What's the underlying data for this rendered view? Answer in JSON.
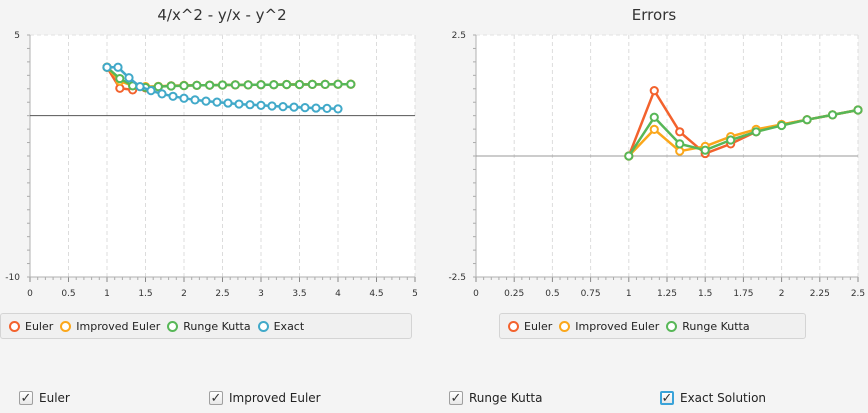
{
  "chart_data": [
    {
      "type": "line",
      "title": "4/x^2 - y/x - y^2",
      "xlim": [
        0,
        5
      ],
      "ylim": [
        -10,
        5
      ],
      "x_ticks": [
        "0",
        "0.5",
        "1",
        "1.5",
        "2",
        "2.5",
        "3",
        "3.5",
        "4",
        "4.5",
        "5"
      ],
      "y_ticks": [
        "5",
        "-10"
      ],
      "grid": true,
      "legend": "bottom",
      "series": [
        {
          "name": "Euler",
          "color": "#f3622d",
          "x": [
            1.0,
            1.1667,
            1.3333,
            1.5,
            1.6667,
            1.8333,
            2.0,
            2.1667,
            2.3333,
            2.5,
            2.6667,
            2.8333,
            3.0,
            3.1667,
            3.3333,
            3.5,
            3.6667,
            3.8333,
            4.0,
            4.1667
          ],
          "y": [
            3,
            1.7,
            1.6,
            1.72,
            1.8,
            1.85,
            1.87,
            1.88,
            1.89,
            1.9,
            1.91,
            1.91,
            1.92,
            1.92,
            1.93,
            1.93,
            1.94,
            1.94,
            1.95,
            1.95
          ]
        },
        {
          "name": "Improved Euler",
          "color": "#fba71b",
          "x": [
            1.0,
            1.1667,
            1.3333,
            1.5,
            1.6667,
            1.8333,
            2.0,
            2.1667,
            2.3333,
            2.5,
            2.6667,
            2.8333,
            3.0,
            3.1667,
            3.3333,
            3.5,
            3.6667,
            3.8333,
            4.0,
            4.1667
          ],
          "y": [
            3,
            2.15,
            1.85,
            1.8,
            1.82,
            1.85,
            1.87,
            1.88,
            1.89,
            1.9,
            1.91,
            1.91,
            1.92,
            1.92,
            1.93,
            1.93,
            1.94,
            1.94,
            1.95,
            1.95
          ]
        },
        {
          "name": "Runge Kutta",
          "color": "#57b757",
          "x": [
            1.0,
            1.1667,
            1.3333,
            1.5,
            1.6667,
            1.8333,
            2.0,
            2.1667,
            2.3333,
            2.5,
            2.6667,
            2.8333,
            3.0,
            3.1667,
            3.3333,
            3.5,
            3.6667,
            3.8333,
            4.0,
            4.1667
          ],
          "y": [
            3,
            2.3,
            1.85,
            1.75,
            1.8,
            1.84,
            1.86,
            1.88,
            1.89,
            1.9,
            1.91,
            1.91,
            1.92,
            1.92,
            1.93,
            1.93,
            1.94,
            1.94,
            1.95,
            1.95
          ]
        },
        {
          "name": "Exact",
          "color": "#41a9c9",
          "x": [
            1.0,
            1.1429,
            1.2857,
            1.4286,
            1.5714,
            1.7143,
            1.8571,
            2.0,
            2.1429,
            2.2857,
            2.4286,
            2.5714,
            2.7143,
            2.8571,
            3.0,
            3.1429,
            3.2857,
            3.4286,
            3.5714,
            3.7143,
            3.8571,
            4.0
          ],
          "y": [
            3,
            3,
            2.35,
            1.8,
            1.55,
            1.35,
            1.2,
            1.08,
            0.98,
            0.9,
            0.84,
            0.78,
            0.72,
            0.68,
            0.64,
            0.6,
            0.56,
            0.53,
            0.5,
            0.47,
            0.45,
            0.42
          ]
        }
      ]
    },
    {
      "type": "line",
      "title": "Errors",
      "xlim": [
        0,
        2.5
      ],
      "ylim": [
        -2.5,
        2.5
      ],
      "x_ticks": [
        "0",
        "0.25",
        "0.5",
        "0.75",
        "1",
        "1.25",
        "1.5",
        "1.75",
        "2",
        "2.25",
        "2.5"
      ],
      "y_ticks": [
        "2.5",
        "-2.5"
      ],
      "grid": true,
      "legend": "bottom",
      "series": [
        {
          "name": "Euler",
          "color": "#f3622d",
          "x": [
            1.0,
            1.1667,
            1.3333,
            1.5,
            1.6667,
            1.8333,
            2.0,
            2.1667,
            2.3333,
            2.5
          ],
          "y": [
            0,
            1.35,
            0.5,
            0.05,
            0.25,
            0.5,
            0.65,
            0.75,
            0.85,
            0.95
          ]
        },
        {
          "name": "Improved Euler",
          "color": "#fba71b",
          "x": [
            1.0,
            1.1667,
            1.3333,
            1.5,
            1.6667,
            1.8333,
            2.0,
            2.1667,
            2.3333,
            2.5
          ],
          "y": [
            0,
            0.55,
            0.1,
            0.2,
            0.4,
            0.55,
            0.65,
            0.75,
            0.85,
            0.95
          ]
        },
        {
          "name": "Runge Kutta",
          "color": "#57b757",
          "x": [
            1.0,
            1.1667,
            1.3333,
            1.5,
            1.6667,
            1.8333,
            2.0,
            2.1667,
            2.3333,
            2.5
          ],
          "y": [
            0,
            0.8,
            0.25,
            0.12,
            0.33,
            0.5,
            0.63,
            0.75,
            0.85,
            0.95
          ]
        }
      ]
    }
  ],
  "controls": {
    "checkboxes": [
      {
        "label": "Euler",
        "checked": true,
        "focused": false
      },
      {
        "label": "Improved Euler",
        "checked": true,
        "focused": false
      },
      {
        "label": "Runge Kutta",
        "checked": true,
        "focused": false
      },
      {
        "label": "Exact Solution",
        "checked": true,
        "focused": true
      }
    ]
  }
}
